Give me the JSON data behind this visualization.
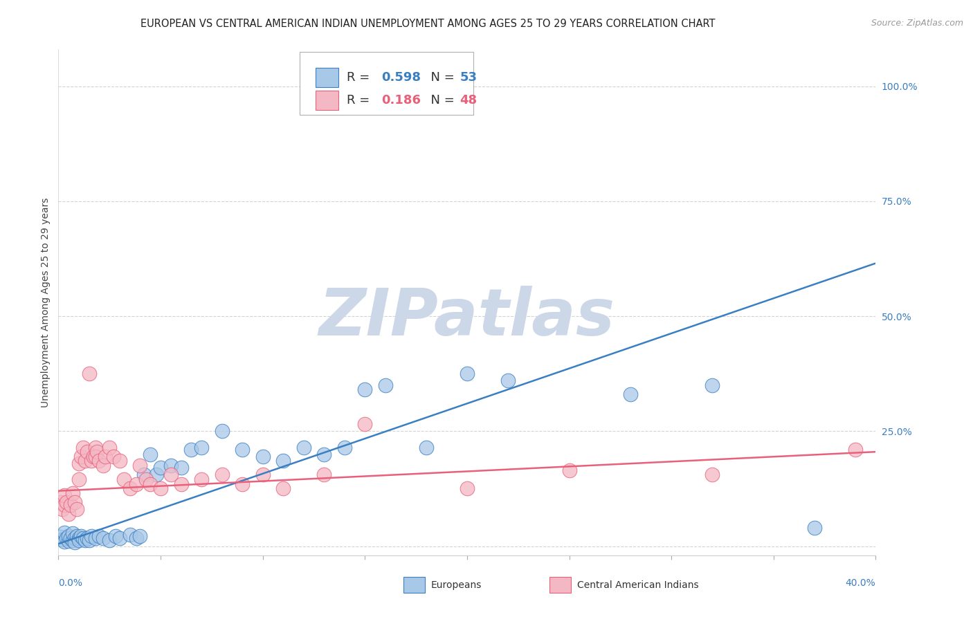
{
  "title": "EUROPEAN VS CENTRAL AMERICAN INDIAN UNEMPLOYMENT AMONG AGES 25 TO 29 YEARS CORRELATION CHART",
  "source_text": "Source: ZipAtlas.com",
  "ylabel": "Unemployment Among Ages 25 to 29 years",
  "xlim": [
    0.0,
    0.4
  ],
  "ylim": [
    -0.02,
    1.08
  ],
  "yticks": [
    0.0,
    0.25,
    0.5,
    0.75,
    1.0
  ],
  "ytick_labels": [
    "",
    "25.0%",
    "50.0%",
    "75.0%",
    "100.0%"
  ],
  "xtick_labels": [
    "0.0%",
    "40.0%"
  ],
  "watermark": "ZIPatlas",
  "blue_R": 0.598,
  "blue_N": 53,
  "pink_R": 0.186,
  "pink_N": 48,
  "blue_color": "#a8c8e8",
  "pink_color": "#f4b8c4",
  "blue_line_color": "#3a7fc1",
  "pink_line_color": "#e8607a",
  "blue_points": [
    [
      0.001,
      0.02
    ],
    [
      0.002,
      0.015
    ],
    [
      0.003,
      0.03
    ],
    [
      0.003,
      0.01
    ],
    [
      0.004,
      0.018
    ],
    [
      0.005,
      0.012
    ],
    [
      0.005,
      0.022
    ],
    [
      0.006,
      0.018
    ],
    [
      0.007,
      0.013
    ],
    [
      0.007,
      0.028
    ],
    [
      0.008,
      0.018
    ],
    [
      0.008,
      0.008
    ],
    [
      0.009,
      0.022
    ],
    [
      0.01,
      0.018
    ],
    [
      0.01,
      0.013
    ],
    [
      0.011,
      0.022
    ],
    [
      0.012,
      0.018
    ],
    [
      0.013,
      0.013
    ],
    [
      0.014,
      0.018
    ],
    [
      0.015,
      0.013
    ],
    [
      0.016,
      0.022
    ],
    [
      0.018,
      0.018
    ],
    [
      0.02,
      0.022
    ],
    [
      0.022,
      0.018
    ],
    [
      0.025,
      0.013
    ],
    [
      0.028,
      0.022
    ],
    [
      0.03,
      0.018
    ],
    [
      0.035,
      0.025
    ],
    [
      0.038,
      0.018
    ],
    [
      0.04,
      0.022
    ],
    [
      0.042,
      0.155
    ],
    [
      0.045,
      0.2
    ],
    [
      0.048,
      0.155
    ],
    [
      0.05,
      0.17
    ],
    [
      0.055,
      0.175
    ],
    [
      0.06,
      0.17
    ],
    [
      0.065,
      0.21
    ],
    [
      0.07,
      0.215
    ],
    [
      0.08,
      0.25
    ],
    [
      0.09,
      0.21
    ],
    [
      0.1,
      0.195
    ],
    [
      0.11,
      0.185
    ],
    [
      0.12,
      0.215
    ],
    [
      0.14,
      0.215
    ],
    [
      0.15,
      0.34
    ],
    [
      0.16,
      0.35
    ],
    [
      0.18,
      0.215
    ],
    [
      0.2,
      0.375
    ],
    [
      0.22,
      0.36
    ],
    [
      0.28,
      0.33
    ],
    [
      0.32,
      0.35
    ],
    [
      0.37,
      0.04
    ],
    [
      0.13,
      0.2
    ]
  ],
  "pink_points": [
    [
      0.001,
      0.095
    ],
    [
      0.002,
      0.08
    ],
    [
      0.003,
      0.09
    ],
    [
      0.003,
      0.11
    ],
    [
      0.004,
      0.095
    ],
    [
      0.005,
      0.07
    ],
    [
      0.006,
      0.09
    ],
    [
      0.007,
      0.115
    ],
    [
      0.008,
      0.095
    ],
    [
      0.009,
      0.08
    ],
    [
      0.01,
      0.145
    ],
    [
      0.01,
      0.18
    ],
    [
      0.011,
      0.195
    ],
    [
      0.012,
      0.215
    ],
    [
      0.013,
      0.185
    ],
    [
      0.014,
      0.205
    ],
    [
      0.015,
      0.375
    ],
    [
      0.016,
      0.185
    ],
    [
      0.017,
      0.195
    ],
    [
      0.018,
      0.215
    ],
    [
      0.018,
      0.195
    ],
    [
      0.019,
      0.205
    ],
    [
      0.02,
      0.185
    ],
    [
      0.022,
      0.175
    ],
    [
      0.023,
      0.195
    ],
    [
      0.025,
      0.215
    ],
    [
      0.027,
      0.195
    ],
    [
      0.03,
      0.185
    ],
    [
      0.032,
      0.145
    ],
    [
      0.035,
      0.125
    ],
    [
      0.038,
      0.135
    ],
    [
      0.04,
      0.175
    ],
    [
      0.043,
      0.145
    ],
    [
      0.045,
      0.135
    ],
    [
      0.05,
      0.125
    ],
    [
      0.055,
      0.155
    ],
    [
      0.06,
      0.135
    ],
    [
      0.07,
      0.145
    ],
    [
      0.08,
      0.155
    ],
    [
      0.09,
      0.135
    ],
    [
      0.1,
      0.155
    ],
    [
      0.11,
      0.125
    ],
    [
      0.15,
      0.265
    ],
    [
      0.2,
      0.125
    ],
    [
      0.25,
      0.165
    ],
    [
      0.32,
      0.155
    ],
    [
      0.39,
      0.21
    ],
    [
      0.13,
      0.155
    ]
  ],
  "blue_line": {
    "x0": 0.0,
    "y0": 0.005,
    "x1": 0.4,
    "y1": 0.615
  },
  "pink_line": {
    "x0": 0.0,
    "y0": 0.12,
    "x1": 0.4,
    "y1": 0.205
  },
  "grid_color": "#c8c8c8",
  "background_color": "#ffffff",
  "title_fontsize": 10.5,
  "axis_label_fontsize": 10,
  "tick_fontsize": 10,
  "watermark_fontsize": 68,
  "watermark_color": "#ccd8e8",
  "source_fontsize": 9,
  "legend_item_fontsize": 13
}
